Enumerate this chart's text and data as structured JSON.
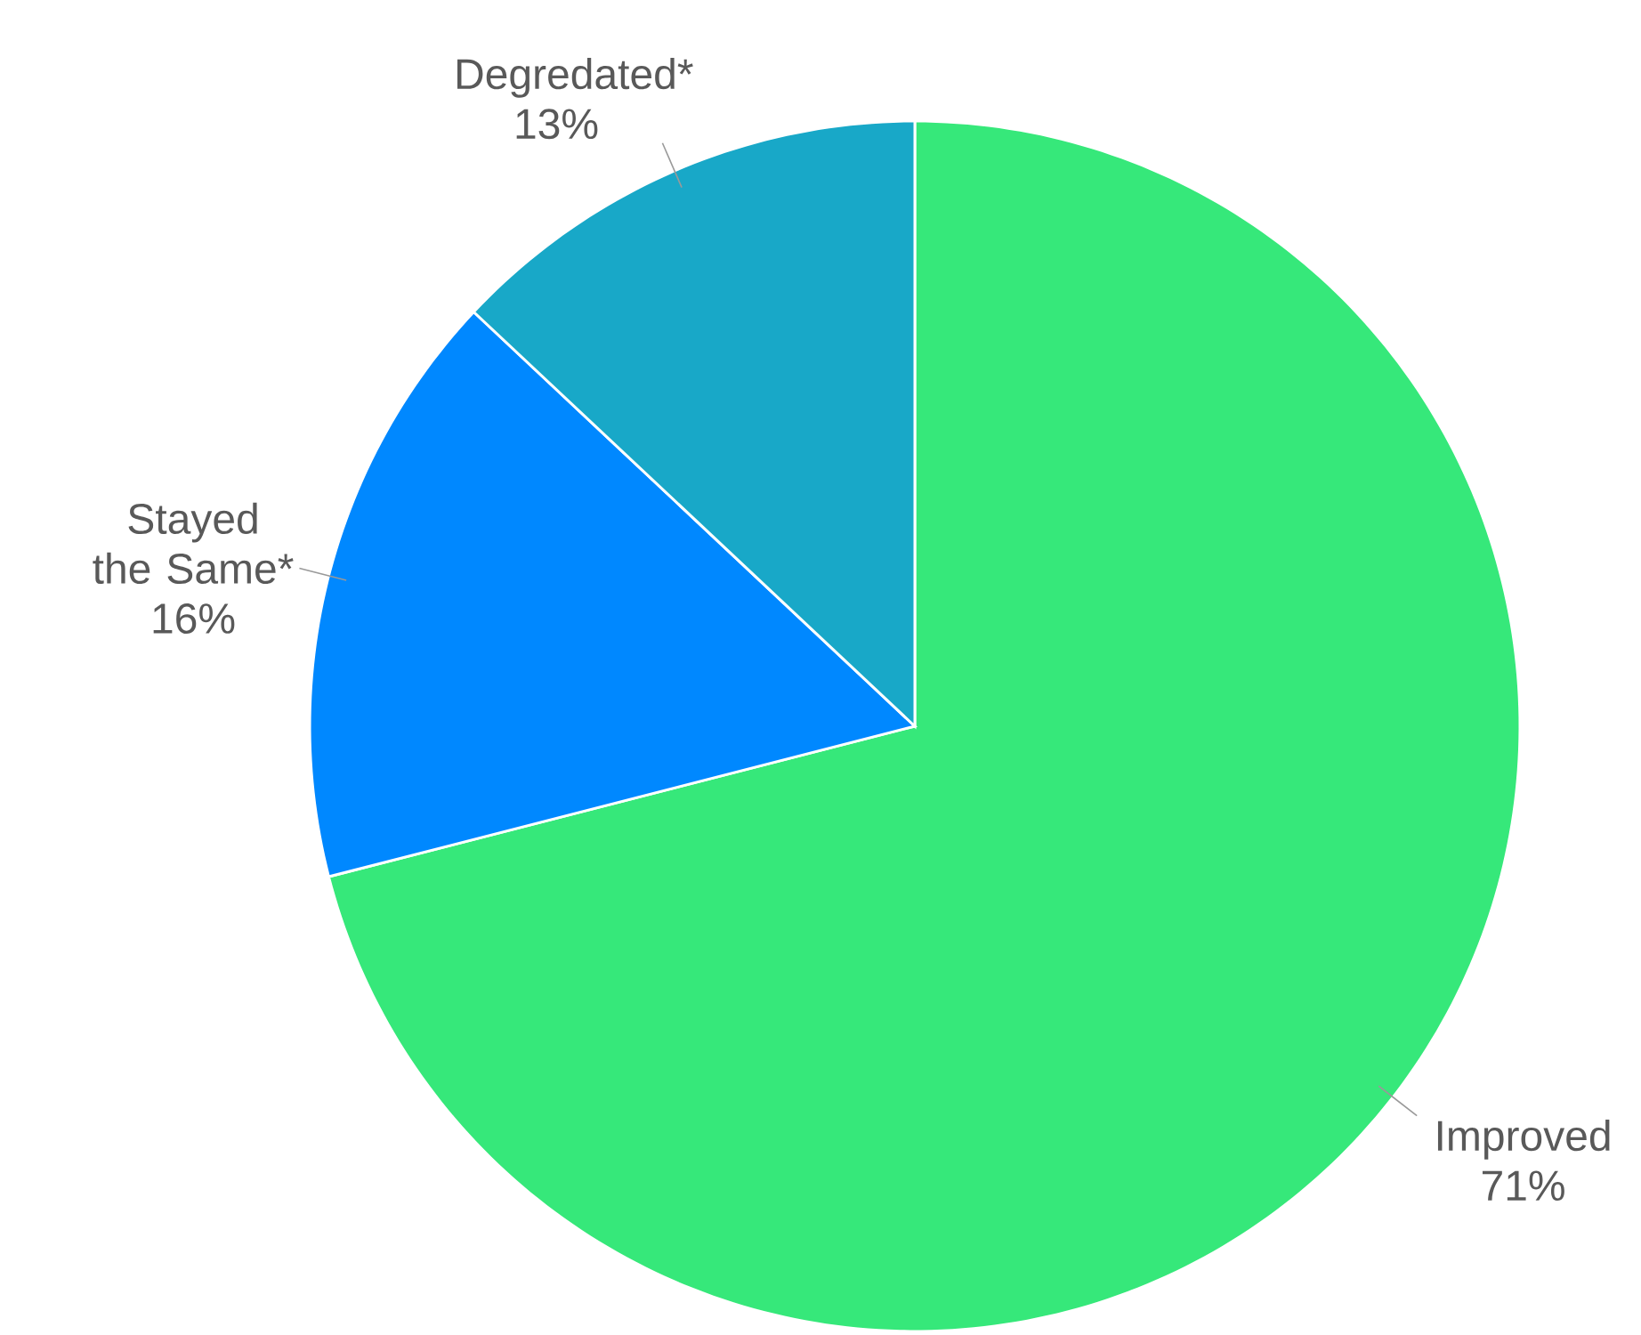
{
  "chart_data": {
    "type": "pie",
    "categories": [
      "Improved",
      "Stayed the Same*",
      "Degredated*"
    ],
    "values": [
      71,
      16,
      13
    ],
    "colors": [
      "#36e87a",
      "#0088ff",
      "#18a8c8"
    ],
    "value_labels": [
      "71%",
      "16%",
      "13%"
    ]
  }
}
